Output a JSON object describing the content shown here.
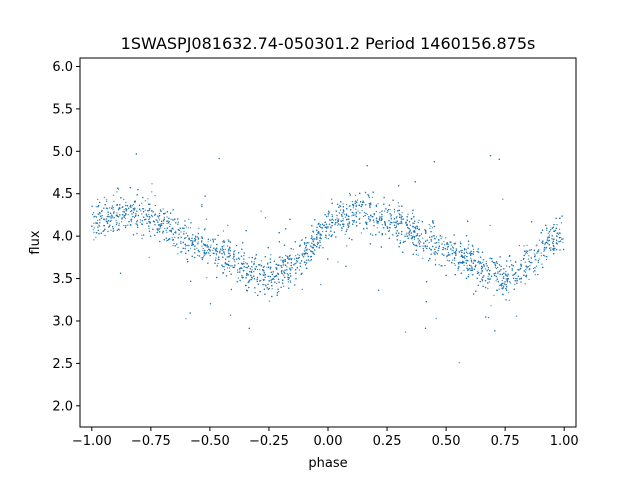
{
  "chart_data": {
    "type": "scatter",
    "title": "1SWASPJ081632.74-050301.2 Period 1460156.875s",
    "xlabel": "phase",
    "ylabel": "flux",
    "xlim": [
      -1.05,
      1.05
    ],
    "ylim": [
      1.75,
      6.1
    ],
    "x_ticks": [
      -1.0,
      -0.75,
      -0.5,
      -0.25,
      0.0,
      0.25,
      0.5,
      0.75,
      1.0
    ],
    "x_tick_labels": [
      "−1.00",
      "−0.75",
      "−0.50",
      "−0.25",
      "0.00",
      "0.25",
      "0.50",
      "0.75",
      "1.00"
    ],
    "y_ticks": [
      2.0,
      2.5,
      3.0,
      3.5,
      4.0,
      4.5,
      5.0,
      5.5,
      6.0
    ],
    "y_tick_labels": [
      "2.0",
      "2.5",
      "3.0",
      "3.5",
      "4.0",
      "4.5",
      "5.0",
      "5.5",
      "6.0"
    ],
    "grid": false,
    "series": [
      {
        "color": "#1f77b4",
        "marker_size": 0.6,
        "x": [
          -0.99,
          -0.94,
          -0.89,
          -0.84,
          -0.79,
          -0.74,
          -0.69,
          -0.64,
          -0.59,
          -0.54,
          -0.49,
          -0.44,
          -0.39,
          -0.34,
          -0.29,
          -0.24,
          -0.19,
          -0.14,
          -0.09,
          -0.04,
          0.01,
          0.06,
          0.11,
          0.16,
          0.21,
          0.26,
          0.31,
          0.36,
          0.41,
          0.46,
          0.51,
          0.56,
          0.61,
          0.66,
          0.71,
          0.76,
          0.81,
          0.86,
          0.91,
          0.96
        ],
        "y": [
          4.15,
          4.2,
          4.28,
          4.27,
          4.25,
          4.2,
          4.12,
          4.05,
          3.98,
          3.9,
          3.82,
          3.75,
          3.68,
          3.6,
          3.55,
          3.52,
          3.58,
          3.7,
          3.85,
          4.0,
          4.15,
          4.2,
          4.28,
          4.27,
          4.25,
          4.2,
          4.12,
          4.05,
          3.98,
          3.9,
          3.82,
          3.75,
          3.68,
          3.6,
          3.55,
          3.52,
          3.58,
          3.7,
          3.85,
          4.0
        ]
      }
    ]
  }
}
